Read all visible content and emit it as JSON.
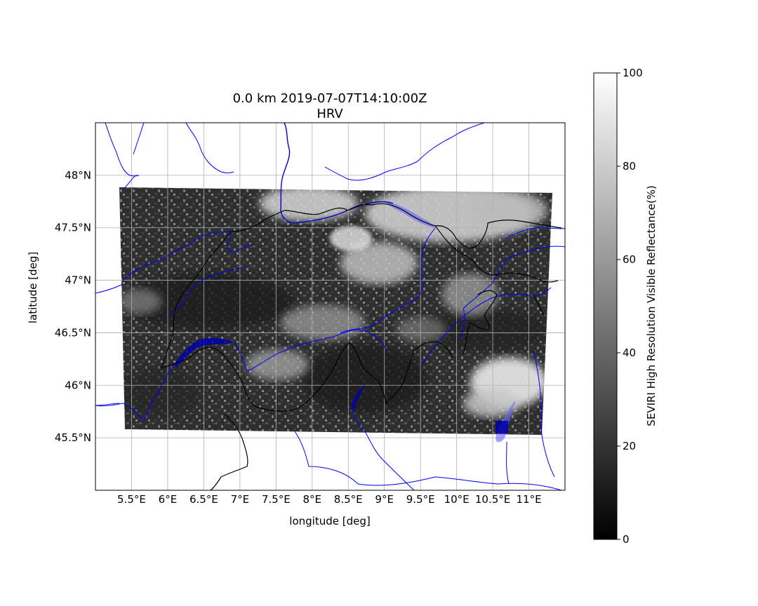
{
  "figure": {
    "title_line1": "0.0 km 2019-07-07T14:10:00Z",
    "title_line2": "HRV",
    "xlabel": "longitude [deg]",
    "ylabel": "latitude [deg]"
  },
  "map": {
    "lon_range": [
      5.0,
      11.5
    ],
    "lat_range": [
      45.0,
      48.5
    ],
    "x_ticks": [
      {
        "value": 5.5,
        "label": "5.5°E"
      },
      {
        "value": 6.0,
        "label": "6°E"
      },
      {
        "value": 6.5,
        "label": "6.5°E"
      },
      {
        "value": 7.0,
        "label": "7°E"
      },
      {
        "value": 7.5,
        "label": "7.5°E"
      },
      {
        "value": 8.0,
        "label": "8°E"
      },
      {
        "value": 8.5,
        "label": "8.5°E"
      },
      {
        "value": 9.0,
        "label": "9°E"
      },
      {
        "value": 9.5,
        "label": "9.5°E"
      },
      {
        "value": 10.0,
        "label": "10°E"
      },
      {
        "value": 10.5,
        "label": "10.5°E"
      },
      {
        "value": 11.0,
        "label": "11°E"
      }
    ],
    "y_ticks": [
      {
        "value": 48.0,
        "label": "48°N"
      },
      {
        "value": 47.5,
        "label": "47.5°N"
      },
      {
        "value": 47.0,
        "label": "47°N"
      },
      {
        "value": 46.5,
        "label": "46.5°N"
      },
      {
        "value": 46.0,
        "label": "46°N"
      },
      {
        "value": 45.5,
        "label": "45.5°N"
      }
    ],
    "grid": true,
    "colors": {
      "rivers": "#0000ff",
      "lakes": "#0000cc",
      "borders": "#000000",
      "grid": "#b0b0b0"
    }
  },
  "colorbar": {
    "label": "SEVIRI High Resolution Visible Reflectance(%)",
    "range": [
      0,
      100
    ],
    "ticks": [
      {
        "value": 0,
        "label": "0"
      },
      {
        "value": 20,
        "label": "20"
      },
      {
        "value": 40,
        "label": "40"
      },
      {
        "value": 60,
        "label": "60"
      },
      {
        "value": 80,
        "label": "80"
      },
      {
        "value": 100,
        "label": "100"
      }
    ],
    "colormap": "gray"
  }
}
